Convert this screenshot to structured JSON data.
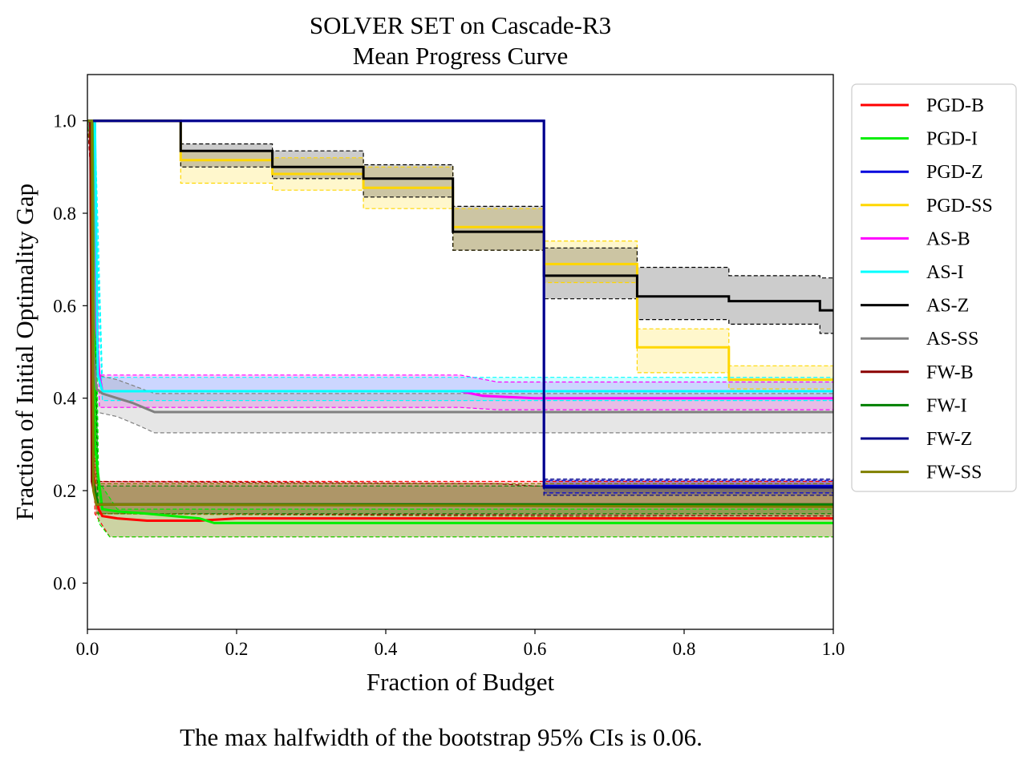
{
  "chart_data": {
    "type": "line",
    "title": [
      "SOLVER SET on Cascade-R3",
      "Mean Progress Curve"
    ],
    "xlabel": "Fraction of Budget",
    "ylabel": "Fraction of Initial Optimality Gap",
    "xlim": [
      0.0,
      1.0
    ],
    "ylim": [
      -0.1,
      1.1
    ],
    "x_ticks": [
      "0.0",
      "0.2",
      "0.4",
      "0.6",
      "0.8",
      "1.0"
    ],
    "y_ticks": [
      "0.0",
      "0.2",
      "0.4",
      "0.6",
      "0.8",
      "1.0"
    ],
    "grid": false,
    "legend_placement": "outside-right",
    "caption": "The max halfwidth of the bootstrap 95% CIs is 0.06.",
    "series": [
      {
        "name": "PGD-B",
        "color": "#ff0000",
        "points": [
          [
            0.0,
            1.0
          ],
          [
            0.004,
            1.0
          ],
          [
            0.006,
            0.3
          ],
          [
            0.01,
            0.2
          ],
          [
            0.015,
            0.16
          ],
          [
            0.02,
            0.145
          ],
          [
            0.04,
            0.14
          ],
          [
            0.08,
            0.135
          ],
          [
            0.15,
            0.135
          ],
          [
            0.2,
            0.14
          ],
          [
            0.5,
            0.14
          ],
          [
            1.0,
            0.14
          ]
        ],
        "ci_low": [
          [
            0.0,
            1.0
          ],
          [
            0.004,
            0.9
          ],
          [
            0.01,
            0.15
          ],
          [
            0.03,
            0.1
          ],
          [
            1.0,
            0.1
          ]
        ],
        "ci_high": [
          [
            0.0,
            1.0
          ],
          [
            0.004,
            1.0
          ],
          [
            0.01,
            0.22
          ],
          [
            1.0,
            0.22
          ]
        ]
      },
      {
        "name": "PGD-I",
        "color": "#00ee00",
        "points": [
          [
            0.0,
            1.0
          ],
          [
            0.008,
            1.0
          ],
          [
            0.01,
            0.3
          ],
          [
            0.014,
            0.24
          ],
          [
            0.02,
            0.16
          ],
          [
            0.04,
            0.155
          ],
          [
            0.08,
            0.15
          ],
          [
            0.15,
            0.14
          ],
          [
            0.17,
            0.13
          ],
          [
            1.0,
            0.13
          ]
        ],
        "ci_low": [
          [
            0.0,
            1.0
          ],
          [
            0.008,
            0.9
          ],
          [
            0.015,
            0.13
          ],
          [
            0.03,
            0.1
          ],
          [
            1.0,
            0.1
          ]
        ],
        "ci_high": [
          [
            0.0,
            1.0
          ],
          [
            0.008,
            1.0
          ],
          [
            0.015,
            0.22
          ],
          [
            0.04,
            0.16
          ],
          [
            1.0,
            0.16
          ]
        ]
      },
      {
        "name": "PGD-Z",
        "color": "#0000dd",
        "points": [
          [
            0.0,
            1.0
          ],
          [
            0.612,
            1.0
          ],
          [
            0.612,
            0.21
          ],
          [
            1.0,
            0.21
          ]
        ],
        "ci_low": [
          [
            0.0,
            1.0
          ],
          [
            0.612,
            1.0
          ],
          [
            0.612,
            0.195
          ],
          [
            1.0,
            0.195
          ]
        ],
        "ci_high": [
          [
            0.0,
            1.0
          ],
          [
            0.612,
            1.0
          ],
          [
            0.612,
            0.222
          ],
          [
            1.0,
            0.222
          ]
        ]
      },
      {
        "name": "PGD-SS",
        "color": "#ffd700",
        "points": [
          [
            0.0,
            1.0
          ],
          [
            0.125,
            1.0
          ],
          [
            0.125,
            0.915
          ],
          [
            0.248,
            0.915
          ],
          [
            0.248,
            0.885
          ],
          [
            0.37,
            0.885
          ],
          [
            0.37,
            0.855
          ],
          [
            0.49,
            0.855
          ],
          [
            0.49,
            0.77
          ],
          [
            0.612,
            0.77
          ],
          [
            0.612,
            0.69
          ],
          [
            0.737,
            0.69
          ],
          [
            0.737,
            0.51
          ],
          [
            0.86,
            0.51
          ],
          [
            0.86,
            0.44
          ],
          [
            1.0,
            0.44
          ]
        ],
        "ci_low": [
          [
            0.0,
            1.0
          ],
          [
            0.125,
            1.0
          ],
          [
            0.125,
            0.865
          ],
          [
            0.248,
            0.865
          ],
          [
            0.248,
            0.85
          ],
          [
            0.37,
            0.85
          ],
          [
            0.37,
            0.81
          ],
          [
            0.49,
            0.81
          ],
          [
            0.49,
            0.72
          ],
          [
            0.612,
            0.72
          ],
          [
            0.612,
            0.65
          ],
          [
            0.737,
            0.65
          ],
          [
            0.737,
            0.455
          ],
          [
            0.86,
            0.455
          ],
          [
            0.86,
            0.42
          ],
          [
            1.0,
            0.42
          ]
        ],
        "ci_high": [
          [
            0.0,
            1.0
          ],
          [
            0.125,
            1.0
          ],
          [
            0.125,
            0.935
          ],
          [
            0.248,
            0.935
          ],
          [
            0.248,
            0.92
          ],
          [
            0.37,
            0.92
          ],
          [
            0.37,
            0.9
          ],
          [
            0.49,
            0.9
          ],
          [
            0.49,
            0.81
          ],
          [
            0.612,
            0.81
          ],
          [
            0.612,
            0.74
          ],
          [
            0.737,
            0.74
          ],
          [
            0.737,
            0.55
          ],
          [
            0.86,
            0.55
          ],
          [
            0.86,
            0.47
          ],
          [
            1.0,
            0.47
          ]
        ]
      },
      {
        "name": "AS-B",
        "color": "#ff00ff",
        "points": [
          [
            0.0,
            1.0
          ],
          [
            0.01,
            1.0
          ],
          [
            0.012,
            0.55
          ],
          [
            0.016,
            0.45
          ],
          [
            0.02,
            0.415
          ],
          [
            0.5,
            0.415
          ],
          [
            0.53,
            0.405
          ],
          [
            0.6,
            0.4
          ],
          [
            1.0,
            0.4
          ]
        ],
        "ci_low": [
          [
            0.0,
            1.0
          ],
          [
            0.01,
            0.9
          ],
          [
            0.016,
            0.38
          ],
          [
            0.5,
            0.38
          ],
          [
            0.55,
            0.375
          ],
          [
            1.0,
            0.375
          ]
        ],
        "ci_high": [
          [
            0.0,
            1.0
          ],
          [
            0.01,
            1.0
          ],
          [
            0.016,
            0.45
          ],
          [
            0.5,
            0.45
          ],
          [
            0.55,
            0.435
          ],
          [
            1.0,
            0.435
          ]
        ]
      },
      {
        "name": "AS-I",
        "color": "#00ffff",
        "points": [
          [
            0.0,
            1.0
          ],
          [
            0.01,
            1.0
          ],
          [
            0.014,
            0.45
          ],
          [
            0.02,
            0.415
          ],
          [
            1.0,
            0.415
          ]
        ],
        "ci_low": [
          [
            0.0,
            1.0
          ],
          [
            0.01,
            0.9
          ],
          [
            0.02,
            0.395
          ],
          [
            1.0,
            0.395
          ]
        ],
        "ci_high": [
          [
            0.0,
            1.0
          ],
          [
            0.01,
            1.0
          ],
          [
            0.02,
            0.445
          ],
          [
            1.0,
            0.445
          ]
        ]
      },
      {
        "name": "AS-Z",
        "color": "#000000",
        "points": [
          [
            0.0,
            1.0
          ],
          [
            0.125,
            1.0
          ],
          [
            0.125,
            0.935
          ],
          [
            0.248,
            0.935
          ],
          [
            0.248,
            0.9
          ],
          [
            0.37,
            0.9
          ],
          [
            0.37,
            0.875
          ],
          [
            0.49,
            0.875
          ],
          [
            0.49,
            0.76
          ],
          [
            0.612,
            0.76
          ],
          [
            0.612,
            0.665
          ],
          [
            0.737,
            0.665
          ],
          [
            0.737,
            0.62
          ],
          [
            0.86,
            0.62
          ],
          [
            0.86,
            0.61
          ],
          [
            0.982,
            0.61
          ],
          [
            0.982,
            0.59
          ],
          [
            1.0,
            0.59
          ]
        ],
        "ci_low": [
          [
            0.0,
            1.0
          ],
          [
            0.125,
            1.0
          ],
          [
            0.125,
            0.9
          ],
          [
            0.248,
            0.9
          ],
          [
            0.248,
            0.875
          ],
          [
            0.37,
            0.875
          ],
          [
            0.37,
            0.835
          ],
          [
            0.49,
            0.835
          ],
          [
            0.49,
            0.72
          ],
          [
            0.612,
            0.72
          ],
          [
            0.612,
            0.615
          ],
          [
            0.737,
            0.615
          ],
          [
            0.737,
            0.57
          ],
          [
            0.86,
            0.57
          ],
          [
            0.86,
            0.56
          ],
          [
            0.982,
            0.56
          ],
          [
            0.982,
            0.54
          ],
          [
            1.0,
            0.54
          ]
        ],
        "ci_high": [
          [
            0.0,
            1.0
          ],
          [
            0.125,
            1.0
          ],
          [
            0.125,
            0.95
          ],
          [
            0.248,
            0.95
          ],
          [
            0.248,
            0.935
          ],
          [
            0.37,
            0.935
          ],
          [
            0.37,
            0.905
          ],
          [
            0.49,
            0.905
          ],
          [
            0.49,
            0.815
          ],
          [
            0.612,
            0.815
          ],
          [
            0.612,
            0.725
          ],
          [
            0.737,
            0.725
          ],
          [
            0.737,
            0.683
          ],
          [
            0.86,
            0.683
          ],
          [
            0.86,
            0.665
          ],
          [
            0.982,
            0.665
          ],
          [
            0.982,
            0.66
          ],
          [
            1.0,
            0.66
          ]
        ]
      },
      {
        "name": "AS-SS",
        "color": "#808080",
        "points": [
          [
            0.0,
            1.0
          ],
          [
            0.006,
            1.0
          ],
          [
            0.008,
            0.5
          ],
          [
            0.012,
            0.42
          ],
          [
            0.02,
            0.41
          ],
          [
            0.04,
            0.4
          ],
          [
            0.06,
            0.39
          ],
          [
            0.075,
            0.38
          ],
          [
            0.09,
            0.37
          ],
          [
            1.0,
            0.37
          ]
        ],
        "ci_low": [
          [
            0.0,
            1.0
          ],
          [
            0.006,
            0.9
          ],
          [
            0.012,
            0.37
          ],
          [
            0.04,
            0.36
          ],
          [
            0.07,
            0.34
          ],
          [
            0.09,
            0.325
          ],
          [
            1.0,
            0.325
          ]
        ],
        "ci_high": [
          [
            0.0,
            1.0
          ],
          [
            0.006,
            1.0
          ],
          [
            0.012,
            0.45
          ],
          [
            0.04,
            0.44
          ],
          [
            0.09,
            0.41
          ],
          [
            1.0,
            0.41
          ]
        ]
      },
      {
        "name": "FW-B",
        "color": "#8b0000",
        "points": [
          [
            0.0,
            1.0
          ],
          [
            0.004,
            1.0
          ],
          [
            0.006,
            0.22
          ],
          [
            0.012,
            0.17
          ],
          [
            1.0,
            0.17
          ]
        ],
        "ci_low": [
          [
            0.0,
            1.0
          ],
          [
            0.004,
            0.9
          ],
          [
            0.012,
            0.15
          ],
          [
            1.0,
            0.145
          ]
        ],
        "ci_high": [
          [
            0.0,
            1.0
          ],
          [
            0.004,
            1.0
          ],
          [
            0.012,
            0.22
          ],
          [
            0.55,
            0.215
          ],
          [
            0.6,
            0.21
          ],
          [
            1.0,
            0.21
          ]
        ]
      },
      {
        "name": "FW-I",
        "color": "#008000",
        "points": [
          [
            0.0,
            1.0
          ],
          [
            0.006,
            1.0
          ],
          [
            0.008,
            0.22
          ],
          [
            0.014,
            0.17
          ],
          [
            1.0,
            0.17
          ]
        ],
        "ci_low": [
          [
            0.0,
            1.0
          ],
          [
            0.006,
            0.9
          ],
          [
            0.014,
            0.15
          ],
          [
            1.0,
            0.15
          ]
        ],
        "ci_high": [
          [
            0.0,
            1.0
          ],
          [
            0.006,
            1.0
          ],
          [
            0.014,
            0.21
          ],
          [
            1.0,
            0.21
          ]
        ]
      },
      {
        "name": "FW-Z",
        "color": "#00008b",
        "points": [
          [
            0.0,
            1.0
          ],
          [
            0.612,
            1.0
          ],
          [
            0.612,
            0.207
          ],
          [
            1.0,
            0.207
          ]
        ],
        "ci_low": [
          [
            0.0,
            1.0
          ],
          [
            0.612,
            1.0
          ],
          [
            0.612,
            0.19
          ],
          [
            1.0,
            0.19
          ]
        ],
        "ci_high": [
          [
            0.0,
            1.0
          ],
          [
            0.612,
            1.0
          ],
          [
            0.612,
            0.225
          ],
          [
            1.0,
            0.225
          ]
        ]
      },
      {
        "name": "FW-SS",
        "color": "#808000",
        "points": [
          [
            0.0,
            1.0
          ],
          [
            0.006,
            1.0
          ],
          [
            0.008,
            0.2
          ],
          [
            0.012,
            0.17
          ],
          [
            1.0,
            0.165
          ]
        ],
        "ci_low": [
          [
            0.0,
            1.0
          ],
          [
            0.006,
            0.9
          ],
          [
            0.012,
            0.15
          ],
          [
            1.0,
            0.14
          ]
        ],
        "ci_high": [
          [
            0.0,
            1.0
          ],
          [
            0.006,
            1.0
          ],
          [
            0.012,
            0.215
          ],
          [
            1.0,
            0.215
          ]
        ]
      }
    ]
  }
}
